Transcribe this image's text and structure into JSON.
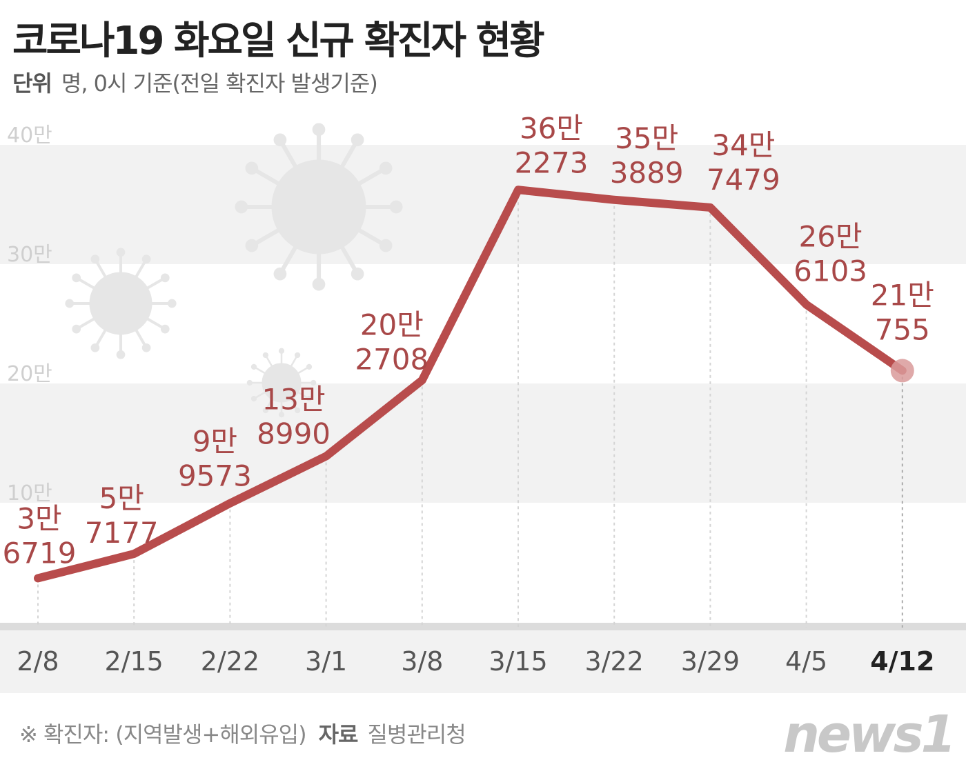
{
  "header": {
    "title": "코로나19 화요일 신규 확진자 현황",
    "unit_label": "단위",
    "unit_text": "명, 0시 기준(전일 확진자 발생기준)"
  },
  "footer": {
    "note": "※ 확진자: (지역발생+해외유입)",
    "source_label": "자료",
    "source": "질병관리청",
    "logo": "news1"
  },
  "chart_data": {
    "type": "line",
    "title": "코로나19 화요일 신규 확진자 현황",
    "xlabel": "",
    "ylabel": "명",
    "categories": [
      "2/8",
      "2/15",
      "2/22",
      "3/1",
      "3/8",
      "3/15",
      "3/22",
      "3/29",
      "4/5",
      "4/12"
    ],
    "values": [
      36719,
      57177,
      99573,
      138990,
      202708,
      362273,
      353889,
      347479,
      266103,
      210755
    ],
    "labels": [
      [
        "3만",
        "6719"
      ],
      [
        "5만",
        "7177"
      ],
      [
        "9만",
        "9573"
      ],
      [
        "13만",
        "8990"
      ],
      [
        "20만",
        "2708"
      ],
      [
        "36만",
        "2273"
      ],
      [
        "35만",
        "3889"
      ],
      [
        "34만",
        "7479"
      ],
      [
        "26만",
        "6103"
      ],
      [
        "21만",
        "755"
      ]
    ],
    "yticks": [
      {
        "v": 100000,
        "label": "10만"
      },
      {
        "v": 200000,
        "label": "20만"
      },
      {
        "v": 300000,
        "label": "30만"
      },
      {
        "v": 400000,
        "label": "40만"
      }
    ],
    "ylim": [
      0,
      400000
    ],
    "highlight_index": 9,
    "colors": {
      "line": "#b84c4c",
      "label": "#a84848",
      "highlight": "#d99a9a"
    }
  }
}
